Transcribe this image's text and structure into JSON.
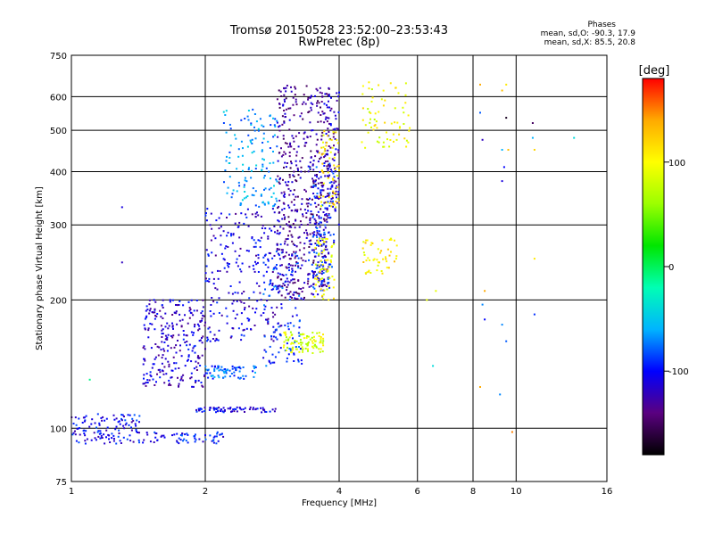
{
  "header": {
    "title_line1": "Tromsø 20150528 23:52:00–23:53:43",
    "title_line2": "RwPretec (8p)"
  },
  "phases": {
    "heading": "Phases",
    "line1": "mean, sd,O: -90.3, 17.9",
    "line2": "mean, sd,X:  85.5, 20.8"
  },
  "colorbar": {
    "unit_label": "[deg]",
    "ticks": [
      100,
      0,
      -100
    ],
    "range": [
      -180,
      180
    ],
    "colors": [
      "#000000",
      "#5a0080",
      "#0000ff",
      "#00b4ff",
      "#00ffb4",
      "#00e600",
      "#9bff00",
      "#ffff00",
      "#ffaa00",
      "#ff0000"
    ]
  },
  "chart_data": {
    "type": "scatter",
    "xlabel": "Frequency [MHz]",
    "ylabel": "Stationary phase Virtual Height [km]",
    "x_scale": "log",
    "y_scale": "log",
    "xlim": [
      1,
      16
    ],
    "ylim": [
      75,
      750
    ],
    "x_ticks": [
      1,
      2,
      4,
      6,
      8,
      10,
      16
    ],
    "y_ticks": [
      75,
      100,
      200,
      300,
      400,
      500,
      600,
      750
    ],
    "grid": true,
    "point_color_by": "phase [deg]",
    "series": [
      {
        "clusters": [
          {
            "f_range": [
              1.0,
              1.45
            ],
            "h_range": [
              92,
              108
            ],
            "n": 120,
            "phase": -105
          },
          {
            "f_range": [
              1.45,
              2.2
            ],
            "h_range": [
              92,
              98
            ],
            "n": 60,
            "phase": -100
          },
          {
            "f_range": [
              1.9,
              2.9
            ],
            "h_range": [
              109,
              112
            ],
            "n": 70,
            "phase": -110
          },
          {
            "f_range": [
              1.45,
              2.0
            ],
            "h_range": [
              125,
              200
            ],
            "n": 260,
            "phase": -115
          },
          {
            "f_range": [
              2.0,
              2.6
            ],
            "h_range": [
              130,
              140
            ],
            "n": 70,
            "phase": -80
          },
          {
            "f_range": [
              2.0,
              3.0
            ],
            "h_range": [
              160,
              330
            ],
            "n": 260,
            "phase": -110
          },
          {
            "f_range": [
              2.2,
              2.9
            ],
            "h_range": [
              330,
              560
            ],
            "n": 140,
            "phase": -65
          },
          {
            "f_range": [
              2.7,
              3.3
            ],
            "h_range": [
              140,
              260
            ],
            "n": 120,
            "phase": -90
          },
          {
            "f_range": [
              2.9,
              3.8
            ],
            "h_range": [
              200,
              640
            ],
            "n": 520,
            "phase": -130
          },
          {
            "f_range": [
              3.4,
              3.9
            ],
            "h_range": [
              210,
              420
            ],
            "n": 140,
            "phase": -95
          },
          {
            "f_range": [
              3.7,
              4.0
            ],
            "h_range": [
              300,
              620
            ],
            "n": 90,
            "phase": -120
          }
        ]
      },
      {
        "clusters": [
          {
            "f_range": [
              3.0,
              3.7
            ],
            "h_range": [
              150,
              168
            ],
            "n": 90,
            "phase": 85
          },
          {
            "f_range": [
              3.5,
              3.9
            ],
            "h_range": [
              200,
              280
            ],
            "n": 60,
            "phase": 95
          },
          {
            "f_range": [
              3.6,
              4.0
            ],
            "h_range": [
              330,
              500
            ],
            "n": 60,
            "phase": 110
          },
          {
            "f_range": [
              4.5,
              5.4
            ],
            "h_range": [
              230,
              280
            ],
            "n": 50,
            "phase": 110
          },
          {
            "f_range": [
              4.5,
              5.8
            ],
            "h_range": [
              450,
              650
            ],
            "n": 70,
            "phase": 95
          }
        ]
      },
      {
        "scattered": [
          {
            "f": 1.3,
            "h": 330,
            "phase": -110
          },
          {
            "f": 1.3,
            "h": 245,
            "phase": -120
          },
          {
            "f": 1.1,
            "h": 130,
            "phase": -10
          },
          {
            "f": 6.5,
            "h": 140,
            "phase": -40
          },
          {
            "f": 6.6,
            "h": 210,
            "phase": 90
          },
          {
            "f": 6.3,
            "h": 200,
            "phase": 90
          },
          {
            "f": 8.3,
            "h": 640,
            "phase": 140
          },
          {
            "f": 8.3,
            "h": 550,
            "phase": -80
          },
          {
            "f": 8.4,
            "h": 475,
            "phase": -120
          },
          {
            "f": 8.5,
            "h": 210,
            "phase": 140
          },
          {
            "f": 8.4,
            "h": 195,
            "phase": -70
          },
          {
            "f": 8.3,
            "h": 125,
            "phase": 140
          },
          {
            "f": 8.5,
            "h": 180,
            "phase": -100
          },
          {
            "f": 9.3,
            "h": 620,
            "phase": 130
          },
          {
            "f": 9.5,
            "h": 640,
            "phase": 110
          },
          {
            "f": 9.5,
            "h": 535,
            "phase": -170
          },
          {
            "f": 9.3,
            "h": 450,
            "phase": -60
          },
          {
            "f": 9.4,
            "h": 410,
            "phase": -100
          },
          {
            "f": 9.3,
            "h": 380,
            "phase": -110
          },
          {
            "f": 9.6,
            "h": 450,
            "phase": 130
          },
          {
            "f": 9.3,
            "h": 175,
            "phase": -70
          },
          {
            "f": 9.5,
            "h": 160,
            "phase": -80
          },
          {
            "f": 9.8,
            "h": 98,
            "phase": 150
          },
          {
            "f": 9.2,
            "h": 120,
            "phase": -70
          },
          {
            "f": 10.9,
            "h": 520,
            "phase": -150
          },
          {
            "f": 10.9,
            "h": 480,
            "phase": -60
          },
          {
            "f": 11.0,
            "h": 450,
            "phase": 120
          },
          {
            "f": 11.0,
            "h": 250,
            "phase": 110
          },
          {
            "f": 11.0,
            "h": 185,
            "phase": -90
          },
          {
            "f": 13.5,
            "h": 480,
            "phase": -40
          }
        ]
      }
    ]
  }
}
